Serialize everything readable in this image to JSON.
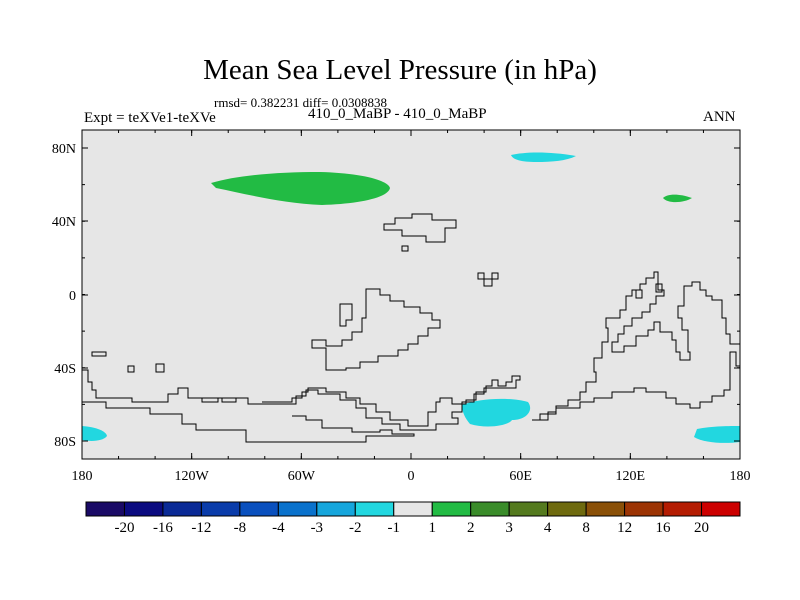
{
  "title": "Mean Sea Level Pressure (in hPa)",
  "stats": "rmsd= 0.382231 diff= 0.0308838",
  "left_label": "Expt = teXVe1-teXVe",
  "center_label": "410_0_MaBP - 410_0_MaBP",
  "right_label": "ANN",
  "map": {
    "background_color": "#e6e6e6",
    "y_ticks": [
      "80N",
      "40N",
      "0",
      "40S",
      "80S"
    ],
    "x_ticks": [
      "180",
      "120W",
      "60W",
      "0",
      "60E",
      "120E",
      "180"
    ],
    "anomaly_regions": [
      {
        "name": "north-atlantic-positive",
        "level": "1 to 2",
        "color": "#22bb44"
      },
      {
        "name": "arctic-negative",
        "level": "-2 to -1",
        "color": "#22d7e0"
      },
      {
        "name": "north-pacific-positive",
        "level": "1 to 2",
        "color": "#22bb44"
      },
      {
        "name": "southern-ocean-negative-west",
        "level": "-2 to -1",
        "color": "#22d7e0"
      },
      {
        "name": "southern-ocean-negative-south-africa",
        "level": "-2 to -1",
        "color": "#22d7e0"
      },
      {
        "name": "southern-ocean-negative-east",
        "level": "-2 to -1",
        "color": "#22d7e0"
      }
    ]
  },
  "colorbar": {
    "levels": [
      "-20",
      "-16",
      "-12",
      "-8",
      "-4",
      "-3",
      "-2",
      "-1",
      "1",
      "2",
      "3",
      "4",
      "8",
      "12",
      "16",
      "20"
    ],
    "colors": [
      "#1a0a66",
      "#0b0b80",
      "#0a2a96",
      "#0a3caa",
      "#0a50be",
      "#0a72cc",
      "#16a6dc",
      "#22d7e0",
      "#e6e6e6",
      "#22bb44",
      "#3a8c2a",
      "#547a1e",
      "#6e6a0e",
      "#8a5008",
      "#9c3404",
      "#b41c02",
      "#cc0000"
    ]
  }
}
